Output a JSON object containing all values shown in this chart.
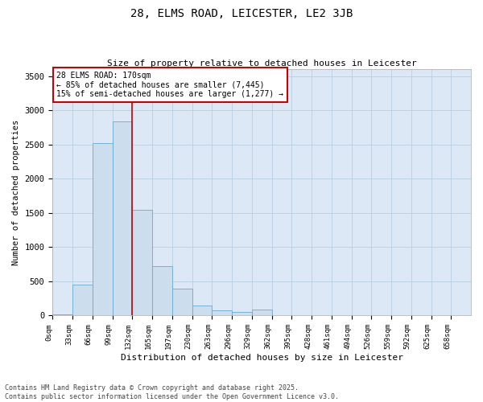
{
  "title": "28, ELMS ROAD, LEICESTER, LE2 3JB",
  "subtitle": "Size of property relative to detached houses in Leicester",
  "xlabel": "Distribution of detached houses by size in Leicester",
  "ylabel": "Number of detached properties",
  "bar_color": "#ccdded",
  "bar_edge_color": "#6aaad4",
  "background_color": "#ffffff",
  "plot_bg_color": "#dce8f5",
  "grid_color": "#b8cfe0",
  "annotation_line_color": "#cc0000",
  "annotation_box_color": "#cc0000",
  "bin_labels": [
    "0sqm",
    "33sqm",
    "66sqm",
    "99sqm",
    "132sqm",
    "165sqm",
    "197sqm",
    "230sqm",
    "263sqm",
    "296sqm",
    "329sqm",
    "362sqm",
    "395sqm",
    "428sqm",
    "461sqm",
    "494sqm",
    "526sqm",
    "559sqm",
    "592sqm",
    "625sqm",
    "658sqm"
  ],
  "bar_heights": [
    15,
    450,
    2520,
    2840,
    1540,
    720,
    390,
    150,
    75,
    55,
    85,
    10,
    5,
    0,
    0,
    0,
    0,
    0,
    0,
    0,
    0
  ],
  "ylim": [
    0,
    3600
  ],
  "yticks": [
    0,
    500,
    1000,
    1500,
    2000,
    2500,
    3000,
    3500
  ],
  "annotation_text": "28 ELMS ROAD: 170sqm\n← 85% of detached houses are smaller (7,445)\n15% of semi-detached houses are larger (1,277) →",
  "vline_x": 4.0,
  "footer_text": "Contains HM Land Registry data © Crown copyright and database right 2025.\nContains public sector information licensed under the Open Government Licence v3.0."
}
